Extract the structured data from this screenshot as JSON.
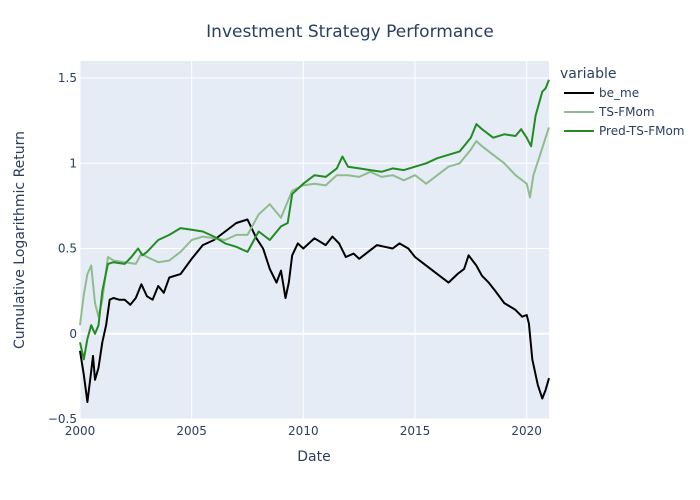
{
  "chart_data": {
    "type": "line",
    "title": "Investment Strategy Performance",
    "xlabel": "Date",
    "ylabel": "Cumulative Logarithmic Return",
    "xlim": [
      2000.0,
      2021.0
    ],
    "ylim": [
      -0.5,
      1.6
    ],
    "x_ticks": [
      2000,
      2005,
      2010,
      2015,
      2020
    ],
    "x_tick_labels": [
      "2000",
      "2005",
      "2010",
      "2015",
      "2020"
    ],
    "y_ticks": [
      -0.5,
      0,
      0.5,
      1,
      1.5
    ],
    "y_tick_labels": [
      "−0.5",
      "0",
      "0.5",
      "1",
      "1.5"
    ],
    "grid": true,
    "legend": {
      "title": "variable",
      "position": "right"
    },
    "series": [
      {
        "name": "be_me",
        "color": "#000000",
        "points": [
          [
            2000.0,
            -0.1
          ],
          [
            2000.17,
            -0.24
          ],
          [
            2000.33,
            -0.4
          ],
          [
            2000.5,
            -0.22
          ],
          [
            2000.58,
            -0.13
          ],
          [
            2000.67,
            -0.27
          ],
          [
            2000.83,
            -0.2
          ],
          [
            2001.0,
            -0.05
          ],
          [
            2001.17,
            0.05
          ],
          [
            2001.33,
            0.2
          ],
          [
            2001.5,
            0.21
          ],
          [
            2001.75,
            0.2
          ],
          [
            2002.0,
            0.2
          ],
          [
            2002.25,
            0.17
          ],
          [
            2002.5,
            0.21
          ],
          [
            2002.75,
            0.29
          ],
          [
            2003.0,
            0.22
          ],
          [
            2003.25,
            0.2
          ],
          [
            2003.5,
            0.28
          ],
          [
            2003.75,
            0.24
          ],
          [
            2004.0,
            0.33
          ],
          [
            2004.5,
            0.35
          ],
          [
            2005.0,
            0.44
          ],
          [
            2005.5,
            0.52
          ],
          [
            2006.0,
            0.55
          ],
          [
            2006.5,
            0.6
          ],
          [
            2007.0,
            0.65
          ],
          [
            2007.5,
            0.67
          ],
          [
            2007.9,
            0.56
          ],
          [
            2008.2,
            0.5
          ],
          [
            2008.5,
            0.38
          ],
          [
            2008.8,
            0.3
          ],
          [
            2009.0,
            0.37
          ],
          [
            2009.2,
            0.21
          ],
          [
            2009.35,
            0.3
          ],
          [
            2009.5,
            0.46
          ],
          [
            2009.75,
            0.53
          ],
          [
            2010.0,
            0.5
          ],
          [
            2010.5,
            0.56
          ],
          [
            2011.0,
            0.52
          ],
          [
            2011.3,
            0.57
          ],
          [
            2011.6,
            0.53
          ],
          [
            2011.9,
            0.45
          ],
          [
            2012.25,
            0.47
          ],
          [
            2012.5,
            0.44
          ],
          [
            2013.0,
            0.49
          ],
          [
            2013.3,
            0.52
          ],
          [
            2014.0,
            0.5
          ],
          [
            2014.3,
            0.53
          ],
          [
            2014.7,
            0.5
          ],
          [
            2015.0,
            0.45
          ],
          [
            2015.5,
            0.4
          ],
          [
            2016.0,
            0.35
          ],
          [
            2016.5,
            0.3
          ],
          [
            2016.9,
            0.35
          ],
          [
            2017.2,
            0.38
          ],
          [
            2017.4,
            0.46
          ],
          [
            2017.75,
            0.4
          ],
          [
            2018.0,
            0.34
          ],
          [
            2018.3,
            0.3
          ],
          [
            2018.6,
            0.25
          ],
          [
            2019.0,
            0.18
          ],
          [
            2019.5,
            0.14
          ],
          [
            2019.8,
            0.1
          ],
          [
            2020.0,
            0.11
          ],
          [
            2020.1,
            0.06
          ],
          [
            2020.25,
            -0.15
          ],
          [
            2020.5,
            -0.3
          ],
          [
            2020.7,
            -0.38
          ],
          [
            2020.85,
            -0.33
          ],
          [
            2021.0,
            -0.26
          ]
        ]
      },
      {
        "name": "TS-FMom",
        "color": "#8fbc8f",
        "points": [
          [
            2000.0,
            0.05
          ],
          [
            2000.17,
            0.23
          ],
          [
            2000.33,
            0.35
          ],
          [
            2000.5,
            0.4
          ],
          [
            2000.67,
            0.18
          ],
          [
            2000.83,
            0.1
          ],
          [
            2001.0,
            0.2
          ],
          [
            2001.25,
            0.45
          ],
          [
            2001.5,
            0.43
          ],
          [
            2002.0,
            0.42
          ],
          [
            2002.5,
            0.41
          ],
          [
            2002.75,
            0.47
          ],
          [
            2003.0,
            0.45
          ],
          [
            2003.5,
            0.42
          ],
          [
            2004.0,
            0.43
          ],
          [
            2004.5,
            0.48
          ],
          [
            2005.0,
            0.55
          ],
          [
            2005.5,
            0.57
          ],
          [
            2006.0,
            0.56
          ],
          [
            2006.5,
            0.55
          ],
          [
            2007.0,
            0.58
          ],
          [
            2007.5,
            0.58
          ],
          [
            2008.0,
            0.7
          ],
          [
            2008.5,
            0.76
          ],
          [
            2009.0,
            0.68
          ],
          [
            2009.5,
            0.84
          ],
          [
            2010.0,
            0.87
          ],
          [
            2010.5,
            0.88
          ],
          [
            2011.0,
            0.87
          ],
          [
            2011.5,
            0.93
          ],
          [
            2012.0,
            0.93
          ],
          [
            2012.5,
            0.92
          ],
          [
            2013.0,
            0.95
          ],
          [
            2013.5,
            0.92
          ],
          [
            2014.0,
            0.93
          ],
          [
            2014.5,
            0.9
          ],
          [
            2015.0,
            0.93
          ],
          [
            2015.5,
            0.88
          ],
          [
            2016.0,
            0.93
          ],
          [
            2016.5,
            0.98
          ],
          [
            2017.0,
            1.0
          ],
          [
            2017.5,
            1.08
          ],
          [
            2017.75,
            1.13
          ],
          [
            2018.0,
            1.1
          ],
          [
            2018.5,
            1.05
          ],
          [
            2019.0,
            1.0
          ],
          [
            2019.5,
            0.93
          ],
          [
            2020.0,
            0.88
          ],
          [
            2020.15,
            0.8
          ],
          [
            2020.3,
            0.93
          ],
          [
            2020.6,
            1.05
          ],
          [
            2020.85,
            1.15
          ],
          [
            2021.0,
            1.21
          ]
        ]
      },
      {
        "name": "Pred-TS-FMom",
        "color": "#228b22",
        "points": [
          [
            2000.0,
            -0.05
          ],
          [
            2000.17,
            -0.15
          ],
          [
            2000.33,
            -0.03
          ],
          [
            2000.5,
            0.05
          ],
          [
            2000.67,
            0.0
          ],
          [
            2000.83,
            0.05
          ],
          [
            2001.0,
            0.25
          ],
          [
            2001.25,
            0.41
          ],
          [
            2001.5,
            0.42
          ],
          [
            2002.0,
            0.41
          ],
          [
            2002.3,
            0.45
          ],
          [
            2002.6,
            0.5
          ],
          [
            2002.8,
            0.46
          ],
          [
            2003.0,
            0.48
          ],
          [
            2003.5,
            0.55
          ],
          [
            2004.0,
            0.58
          ],
          [
            2004.5,
            0.62
          ],
          [
            2005.0,
            0.61
          ],
          [
            2005.5,
            0.6
          ],
          [
            2006.0,
            0.57
          ],
          [
            2006.5,
            0.53
          ],
          [
            2007.0,
            0.51
          ],
          [
            2007.5,
            0.48
          ],
          [
            2008.0,
            0.6
          ],
          [
            2008.5,
            0.55
          ],
          [
            2009.0,
            0.63
          ],
          [
            2009.3,
            0.65
          ],
          [
            2009.5,
            0.82
          ],
          [
            2010.0,
            0.88
          ],
          [
            2010.5,
            0.93
          ],
          [
            2011.0,
            0.92
          ],
          [
            2011.5,
            0.97
          ],
          [
            2011.75,
            1.04
          ],
          [
            2012.0,
            0.98
          ],
          [
            2012.5,
            0.97
          ],
          [
            2013.0,
            0.96
          ],
          [
            2013.5,
            0.95
          ],
          [
            2014.0,
            0.97
          ],
          [
            2014.5,
            0.96
          ],
          [
            2015.0,
            0.98
          ],
          [
            2015.5,
            1.0
          ],
          [
            2016.0,
            1.03
          ],
          [
            2016.5,
            1.05
          ],
          [
            2017.0,
            1.07
          ],
          [
            2017.5,
            1.15
          ],
          [
            2017.75,
            1.23
          ],
          [
            2018.0,
            1.2
          ],
          [
            2018.5,
            1.15
          ],
          [
            2019.0,
            1.17
          ],
          [
            2019.5,
            1.16
          ],
          [
            2019.75,
            1.2
          ],
          [
            2020.0,
            1.15
          ],
          [
            2020.2,
            1.1
          ],
          [
            2020.4,
            1.28
          ],
          [
            2020.7,
            1.42
          ],
          [
            2020.85,
            1.44
          ],
          [
            2021.0,
            1.49
          ]
        ]
      }
    ]
  }
}
